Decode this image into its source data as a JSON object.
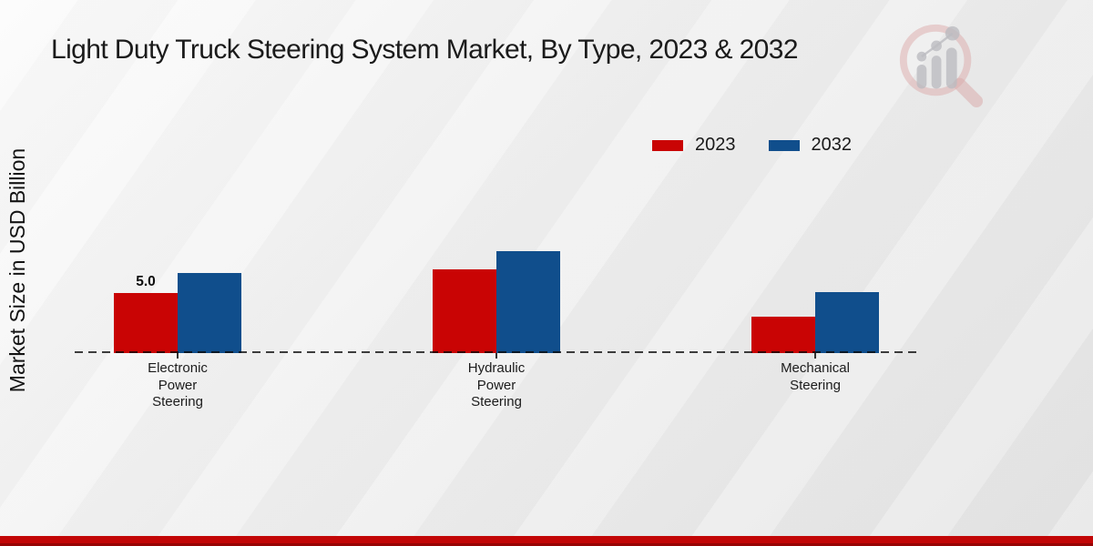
{
  "title": "Light Duty Truck Steering System Market, By Type, 2023 & 2032",
  "y_axis_label": "Market Size in USD Billion",
  "legend": [
    {
      "label": "2023",
      "color": "#c90404"
    },
    {
      "label": "2032",
      "color": "#104e8c"
    }
  ],
  "footer_bar_color": "#c20606",
  "brand_logo": "magnifier-growth-chart-watermark",
  "chart_data": {
    "type": "bar",
    "title": "Light Duty Truck Steering System Market, By Type, 2023 & 2032",
    "ylabel": "Market Size in USD Billion",
    "xlabel": "",
    "categories": [
      "Electronic Power Steering",
      "Hydraulic Power Steering",
      "Mechanical Steering"
    ],
    "series": [
      {
        "name": "2023",
        "color": "#c90404",
        "values": [
          5.0,
          7.0,
          3.0
        ]
      },
      {
        "name": "2032",
        "color": "#104e8c",
        "values": [
          6.7,
          8.5,
          5.1
        ]
      }
    ],
    "data_labels": [
      {
        "series": "2023",
        "category_index": 0,
        "text": "5.0"
      }
    ],
    "axis_style": "dashed-baseline-only",
    "grid": false,
    "legend_position": "top-right"
  }
}
